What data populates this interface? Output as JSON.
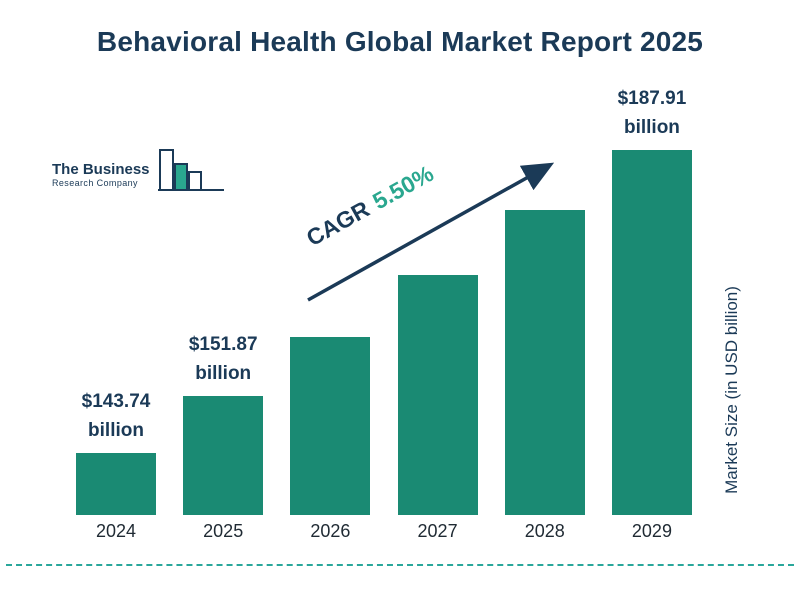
{
  "logo": {
    "line1": "The Business",
    "line2": "Research Company"
  },
  "cagr": {
    "prefix": "CAGR",
    "value": "5.50%"
  },
  "chart_data": {
    "type": "bar",
    "title": "Behavioral Health Global Market Report 2025",
    "categories": [
      "2024",
      "2025",
      "2026",
      "2027",
      "2028",
      "2029"
    ],
    "values": [
      143.74,
      151.87,
      160.22,
      169.03,
      178.33,
      187.91
    ],
    "value_labels": [
      {
        "amount": "$143.74",
        "unit": "billion"
      },
      {
        "amount": "$151.87",
        "unit": "billion"
      },
      null,
      null,
      null,
      {
        "amount": "$187.91",
        "unit": "billion"
      }
    ],
    "cagr_annotation": "CAGR 5.50%",
    "xlabel": "",
    "ylabel": "Market Size (in USD billion)",
    "legend": "none",
    "grid": false,
    "colors": {
      "bar": "#1a8a73",
      "title": "#1b3a57",
      "cagr_value": "#2aa78f",
      "arrow": "#1b3a57",
      "dashed_line": "#2aa79b"
    }
  }
}
